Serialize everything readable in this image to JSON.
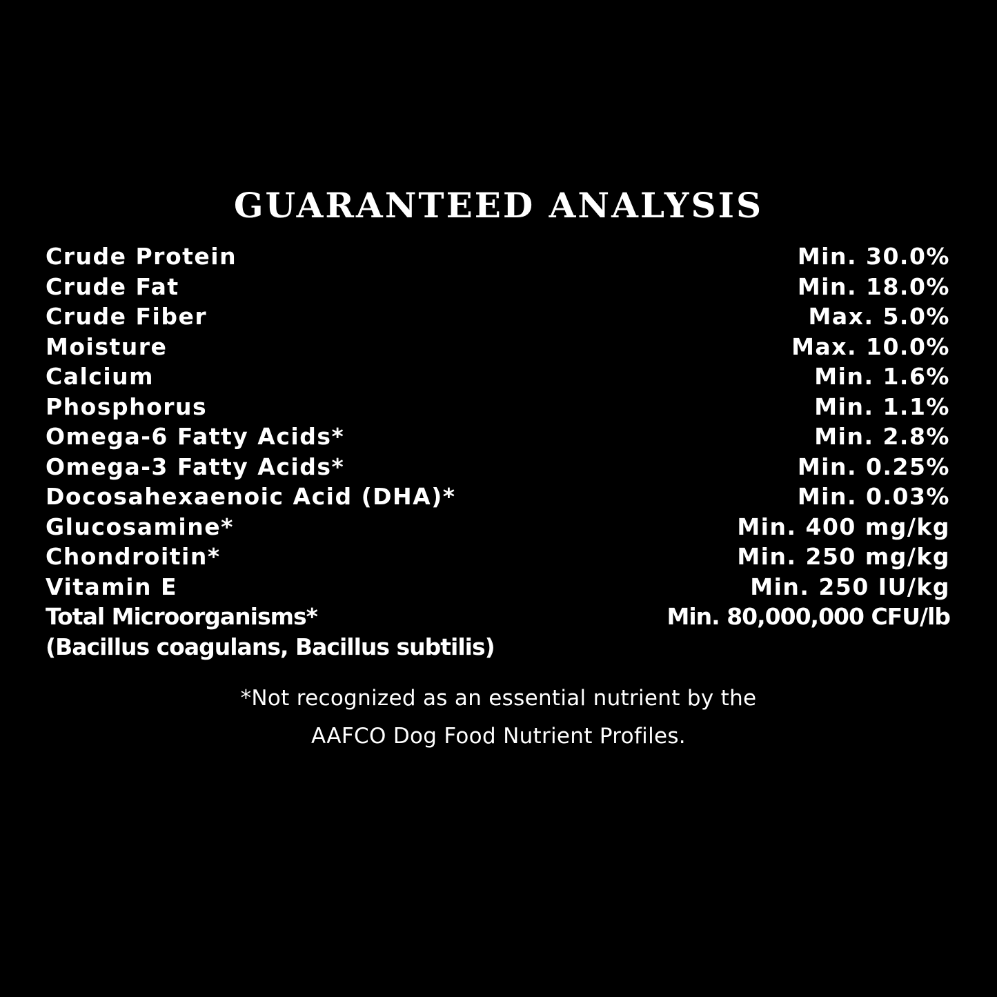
{
  "title": "GUARANTEED ANALYSIS",
  "rows": [
    {
      "label": "Crude Protein",
      "value": "Min. 30.0%"
    },
    {
      "label": "Crude Fat",
      "value": "Min. 18.0%"
    },
    {
      "label": "Crude Fiber",
      "value": "Max. 5.0%"
    },
    {
      "label": "Moisture",
      "value": "Max. 10.0%"
    },
    {
      "label": "Calcium",
      "value": "Min. 1.6%"
    },
    {
      "label": "Phosphorus",
      "value": "Min. 1.1%"
    },
    {
      "label": "Omega-6 Fatty Acids*",
      "value": "Min. 2.8%"
    },
    {
      "label": "Omega-3 Fatty Acids*",
      "value": "Min. 0.25%"
    },
    {
      "label": "Docosahexaenoic Acid (DHA)*",
      "value": "Min. 0.03%"
    },
    {
      "label": "Glucosamine*",
      "value": "Min. 400 mg/kg"
    },
    {
      "label": "Chondroitin*",
      "value": "Min. 250 mg/kg"
    },
    {
      "label": "Vitamin E",
      "value": "Min. 250 IU/kg"
    },
    {
      "label": "Total Microorganisms*",
      "value": "Min. 80,000,000 CFU/lb"
    }
  ],
  "microorganisms_note": "(Bacillus coagulans, Bacillus subtilis)",
  "footnote": {
    "line1": "*Not recognized as an essential nutrient by the",
    "line2": "AAFCO Dog Food Nutrient Profiles."
  }
}
